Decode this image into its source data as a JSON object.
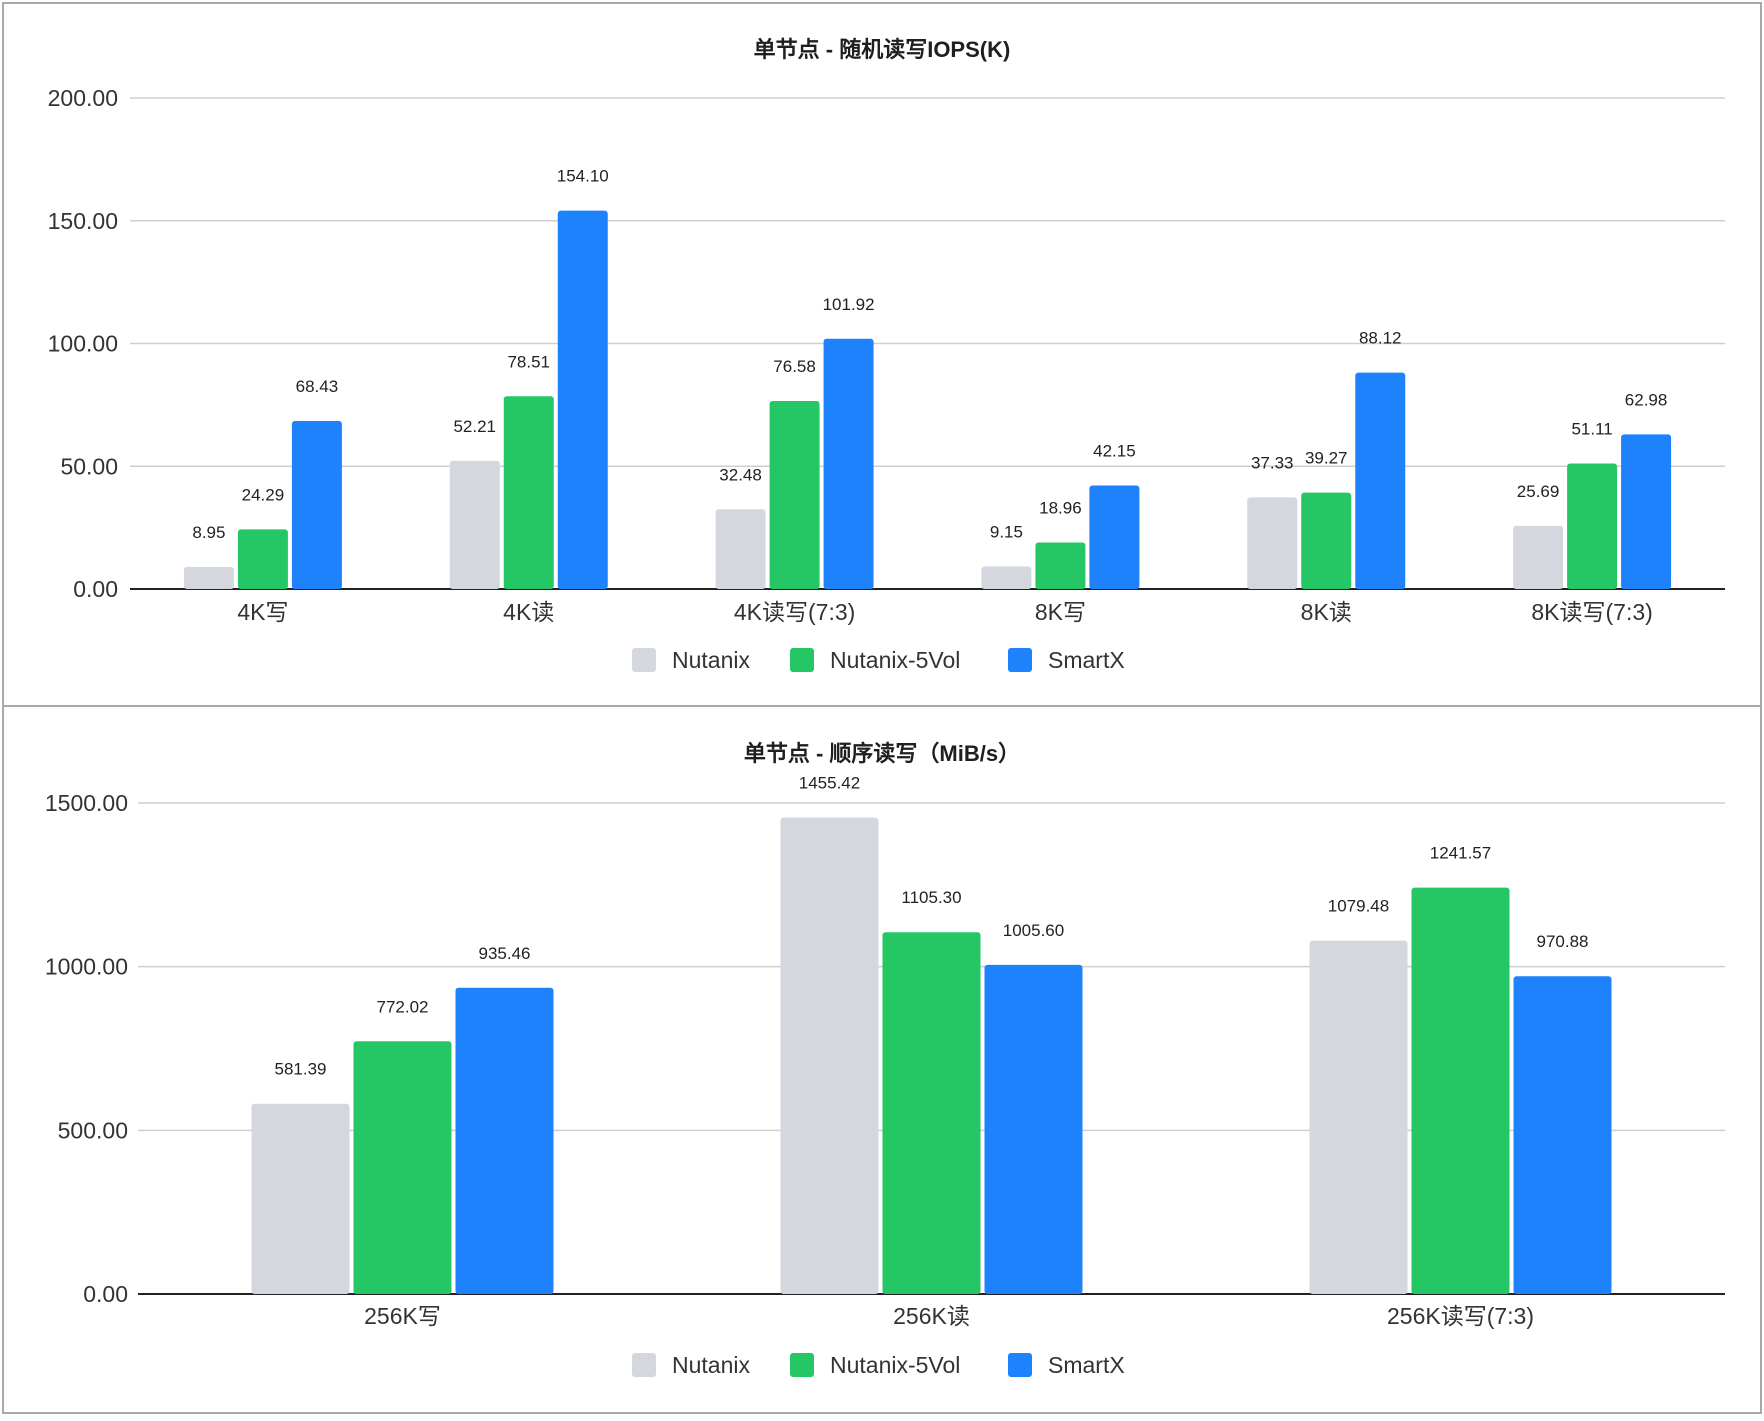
{
  "chart_data": [
    {
      "type": "bar",
      "title": "单节点 - 随机读写IOPS(K)",
      "categories": [
        "4K写",
        "4K读",
        "4K读写(7:3)",
        "8K写",
        "8K读",
        "8K读写(7:3)"
      ],
      "series": [
        {
          "name": "Nutanix",
          "color": "#d4d7de",
          "values": [
            8.95,
            52.21,
            32.48,
            9.15,
            37.33,
            25.69
          ]
        },
        {
          "name": "Nutanix-5Vol",
          "color": "#25c765",
          "values": [
            24.29,
            78.51,
            76.58,
            18.96,
            39.27,
            51.11
          ]
        },
        {
          "name": "SmartX",
          "color": "#1d82fc",
          "values": [
            68.43,
            154.1,
            101.92,
            42.15,
            88.12,
            62.98
          ]
        }
      ],
      "value_labels": [
        [
          "8.95",
          "52.21",
          "32.48",
          "9.15",
          "37.33",
          "25.69"
        ],
        [
          "24.29",
          "78.51",
          "76.58",
          "18.96",
          "39.27",
          "51.11"
        ],
        [
          "68.43",
          "154.10",
          "101.92",
          "42.15",
          "88.12",
          "62.98"
        ]
      ],
      "yticks": [
        0,
        50,
        100,
        150,
        200
      ],
      "ytick_labels": [
        "0.00",
        "50.00",
        "100.00",
        "150.00",
        "200.00"
      ],
      "ylim": [
        0,
        200
      ],
      "legend": "bottom",
      "grid": true
    },
    {
      "type": "bar",
      "title": "单节点 - 顺序读写（MiB/s）",
      "categories": [
        "256K写",
        "256K读",
        "256K读写(7:3)"
      ],
      "series": [
        {
          "name": "Nutanix",
          "color": "#d4d7de",
          "values": [
            581.39,
            1455.42,
            1079.48
          ]
        },
        {
          "name": "Nutanix-5Vol",
          "color": "#25c765",
          "values": [
            772.02,
            1105.3,
            1241.57
          ]
        },
        {
          "name": "SmartX",
          "color": "#1d82fc",
          "values": [
            935.46,
            1005.6,
            970.88
          ]
        }
      ],
      "value_labels": [
        [
          "581.39",
          "1455.42",
          "1079.48"
        ],
        [
          "772.02",
          "1105.30",
          "1241.57"
        ],
        [
          "935.46",
          "1005.60",
          "970.88"
        ]
      ],
      "yticks": [
        0,
        500,
        1000,
        1500
      ],
      "ytick_labels": [
        "0.00",
        "500.00",
        "1000.00",
        "1500.00"
      ],
      "ylim": [
        0,
        1500
      ],
      "legend": "bottom",
      "grid": true
    }
  ]
}
